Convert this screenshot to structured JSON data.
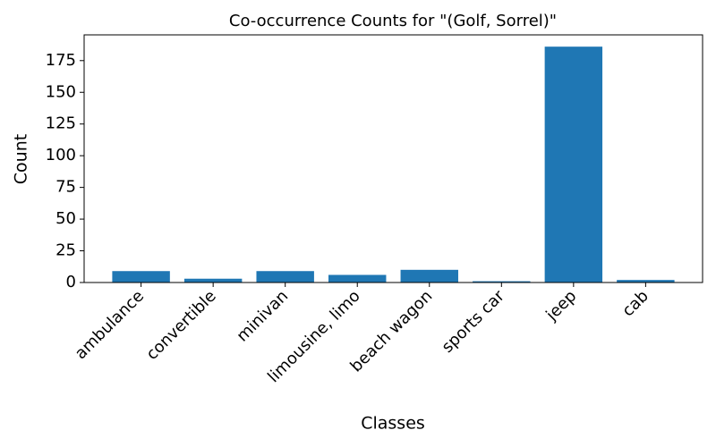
{
  "chart_data": {
    "type": "bar",
    "title": "Co-occurrence Counts for \"(Golf, Sorrel)\"",
    "x_label": "Classes",
    "y_label": "Count",
    "categories": [
      "ambulance",
      "convertible",
      "minivan",
      "limousine, limo",
      "beach wagon",
      "sports car",
      "jeep",
      "cab"
    ],
    "values": [
      9,
      3,
      9,
      6,
      10,
      1,
      186,
      2
    ],
    "color": "#1f77b4",
    "ylim": [
      0,
      195.3
    ],
    "yticks": [
      0,
      25,
      50,
      75,
      100,
      125,
      150,
      175
    ],
    "grid": false
  }
}
